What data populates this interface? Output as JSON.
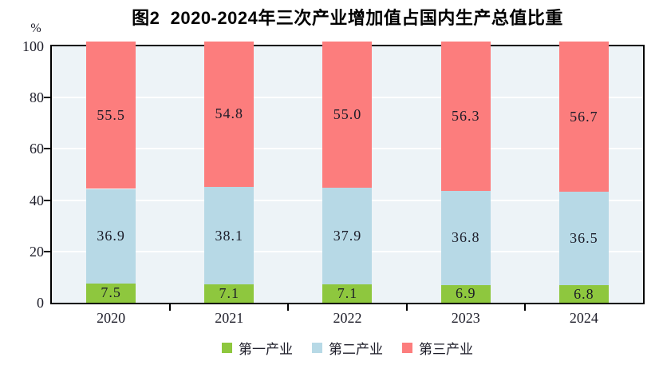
{
  "chart_data": {
    "type": "bar",
    "stacked": true,
    "title": "图2  2020-2024年三次产业增加值占国内生产总值比重",
    "ylabel": "%",
    "categories": [
      "2020",
      "2021",
      "2022",
      "2023",
      "2024"
    ],
    "series": [
      {
        "name": "第一产业",
        "color": "#8ec73e",
        "values": [
          7.5,
          7.1,
          7.1,
          6.9,
          6.8
        ]
      },
      {
        "name": "第二产业",
        "color": "#b7d9e6",
        "values": [
          36.9,
          38.1,
          37.9,
          36.8,
          36.5
        ]
      },
      {
        "name": "第三产业",
        "color": "#fc7d7d",
        "values": [
          55.5,
          54.8,
          55.0,
          56.3,
          56.7
        ]
      }
    ],
    "ylim": [
      0,
      100
    ],
    "yticks": [
      0,
      20,
      40,
      60,
      80,
      100
    ],
    "gridline_values": [
      20,
      40,
      60,
      80
    ],
    "grid": true,
    "legend_position": "bottom",
    "colors": {
      "plot_background": "#edf3f7",
      "gridline": "#ffffff",
      "axis": "#000000",
      "label_text": "#1c1c28"
    }
  }
}
